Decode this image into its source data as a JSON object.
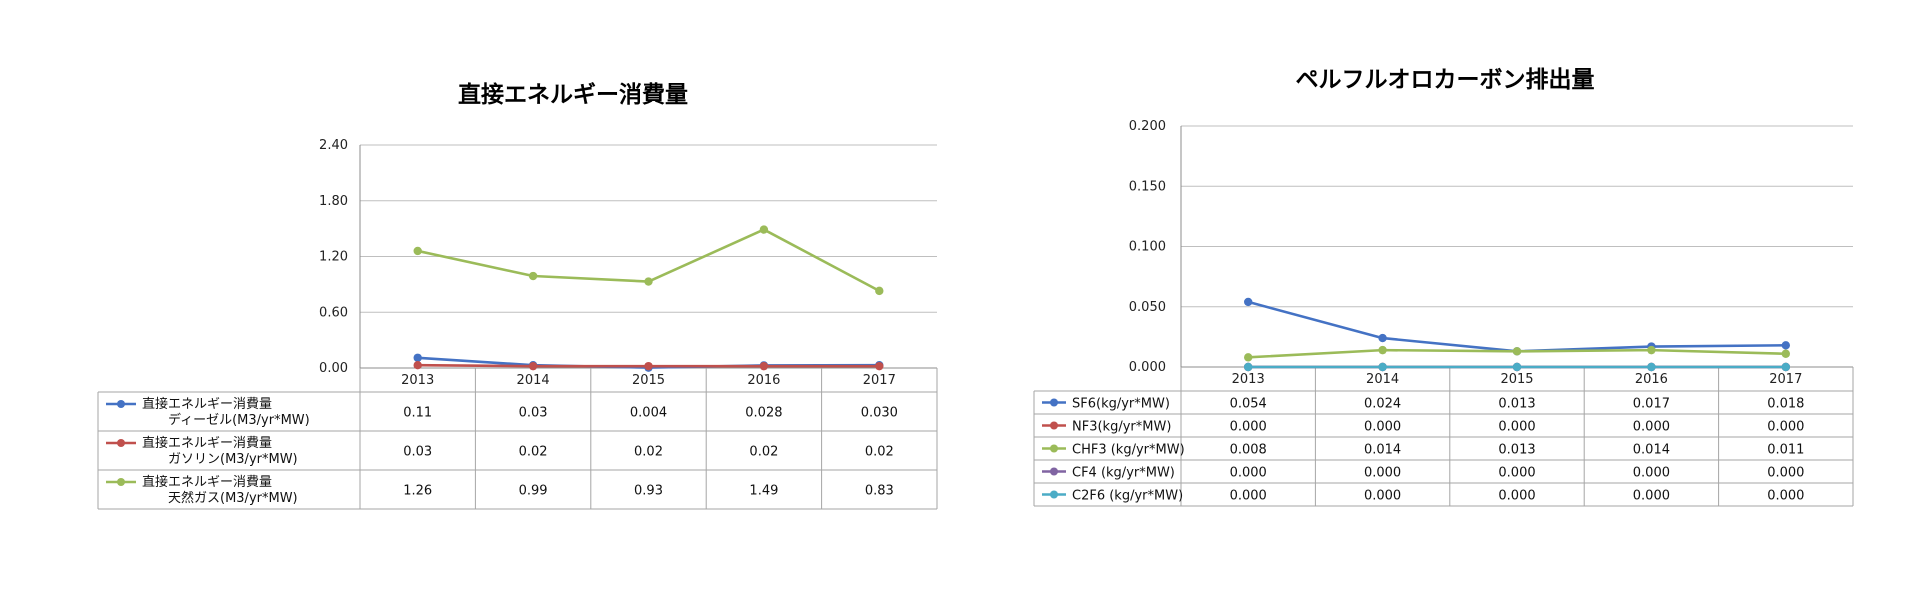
{
  "chart_data": [
    {
      "type": "line",
      "title": "直接エネルギー消費量",
      "categories": [
        "2013",
        "2014",
        "2015",
        "2016",
        "2017"
      ],
      "ylim": [
        0,
        2.4
      ],
      "yticks": [
        "0.00",
        "0.60",
        "1.20",
        "1.80",
        "2.40"
      ],
      "grid": true,
      "legend": "data-table",
      "series": [
        {
          "name": "直接エネルギー消費量\nディーゼル(M3/yr*MW)",
          "color": "#4472C4",
          "values": [
            0.11,
            0.03,
            0.004,
            0.028,
            0.03
          ],
          "labels": [
            "0.11",
            "0.03",
            "0.004",
            "0.028",
            "0.030"
          ]
        },
        {
          "name": "直接エネルギー消費量\nガソリン(M3/yr*MW)",
          "color": "#C0504D",
          "values": [
            0.03,
            0.02,
            0.02,
            0.02,
            0.02
          ],
          "labels": [
            "0.03",
            "0.02",
            "0.02",
            "0.02",
            "0.02"
          ]
        },
        {
          "name": "直接エネルギー消費量\n天然ガス(M3/yr*MW)",
          "color": "#9BBB59",
          "values": [
            1.26,
            0.99,
            0.93,
            1.49,
            0.83
          ],
          "labels": [
            "1.26",
            "0.99",
            "0.93",
            "1.49",
            "0.83"
          ]
        }
      ]
    },
    {
      "type": "line",
      "title": "ペルフルオロカーボン排出量",
      "categories": [
        "2013",
        "2014",
        "2015",
        "2016",
        "2017"
      ],
      "ylim": [
        0,
        0.2
      ],
      "yticks": [
        "0.000",
        "0.050",
        "0.100",
        "0.150",
        "0.200"
      ],
      "grid": true,
      "legend": "data-table",
      "series": [
        {
          "name": "SF6(kg/yr*MW)",
          "color": "#4472C4",
          "values": [
            0.054,
            0.024,
            0.013,
            0.017,
            0.018
          ],
          "labels": [
            "0.054",
            "0.024",
            "0.013",
            "0.017",
            "0.018"
          ]
        },
        {
          "name": "NF3(kg/yr*MW)",
          "color": "#C0504D",
          "values": [
            0.0,
            0.0,
            0.0,
            0.0,
            0.0
          ],
          "labels": [
            "0.000",
            "0.000",
            "0.000",
            "0.000",
            "0.000"
          ]
        },
        {
          "name": "CHF3 (kg/yr*MW)",
          "color": "#9BBB59",
          "values": [
            0.008,
            0.014,
            0.013,
            0.014,
            0.011
          ],
          "labels": [
            "0.008",
            "0.014",
            "0.013",
            "0.014",
            "0.011"
          ]
        },
        {
          "name": "CF4 (kg/yr*MW)",
          "color": "#8064A2",
          "values": [
            0.0,
            0.0,
            0.0,
            0.0,
            0.0
          ],
          "labels": [
            "0.000",
            "0.000",
            "0.000",
            "0.000",
            "0.000"
          ]
        },
        {
          "name": "C2F6 (kg/yr*MW)",
          "color": "#4BACC6",
          "values": [
            0.0,
            0.0,
            0.0,
            0.0,
            0.0
          ],
          "labels": [
            "0.000",
            "0.000",
            "0.000",
            "0.000",
            "0.000"
          ]
        }
      ]
    }
  ]
}
